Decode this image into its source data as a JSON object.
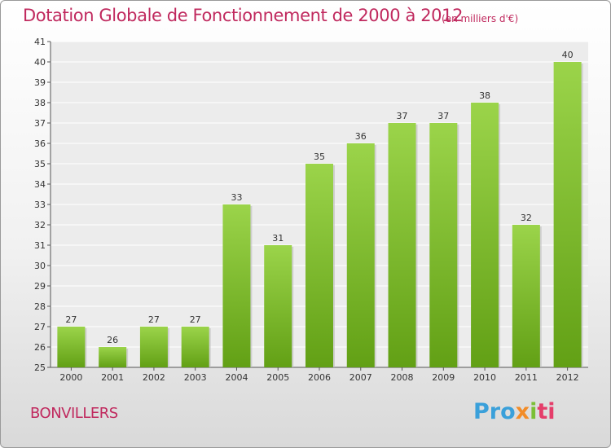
{
  "header": {
    "title": "Dotation Globale de Fonctionnement de 2000 à 2012",
    "unit": "(en milliers d'€)"
  },
  "footer": {
    "commune": "BONVILLERS",
    "logo_text": "Proxiti",
    "logo_colors": [
      "#3aa0da",
      "#f28c28",
      "#7bbf36",
      "#e53d6a"
    ]
  },
  "chart_data": {
    "type": "bar",
    "title": "Dotation Globale de Fonctionnement de 2000 à 2012",
    "subtitle": "(en milliers d'€)",
    "xlabel": "",
    "ylabel": "",
    "categories": [
      "2000",
      "2001",
      "2002",
      "2003",
      "2004",
      "2005",
      "2006",
      "2007",
      "2008",
      "2009",
      "2010",
      "2011",
      "2012"
    ],
    "values": [
      27,
      26,
      27,
      27,
      33,
      31,
      35,
      36,
      37,
      37,
      38,
      32,
      40
    ],
    "ylim": [
      25,
      41
    ],
    "yticks": [
      25,
      26,
      27,
      28,
      29,
      30,
      31,
      32,
      33,
      34,
      35,
      36,
      37,
      38,
      39,
      40,
      41
    ],
    "grid": true,
    "legend": "none",
    "bar_color_top": "#9bd44a",
    "bar_color_bottom": "#62a015",
    "axis_color": "#555555"
  }
}
